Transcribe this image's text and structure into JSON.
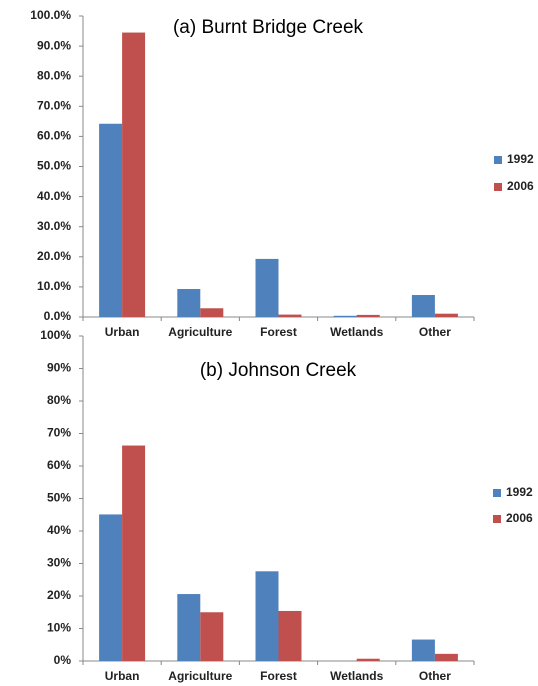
{
  "chart_data": [
    {
      "type": "bar",
      "title": "(a) Burnt Bridge Creek",
      "categories": [
        "Urban",
        "Agriculture",
        "Forest",
        "Wetlands",
        "Other"
      ],
      "series": [
        {
          "name": "1992",
          "color": "#4f81bd",
          "values": [
            64.2,
            9.3,
            19.3,
            0.4,
            7.3
          ]
        },
        {
          "name": "2006",
          "color": "#c0504d",
          "values": [
            94.5,
            2.9,
            0.8,
            0.7,
            1.1
          ]
        }
      ],
      "ylim": [
        0,
        100
      ],
      "yticks": [
        {
          "value": 0,
          "label": "0.0%"
        },
        {
          "value": 10,
          "label": "10.0%"
        },
        {
          "value": 20,
          "label": "20.0%"
        },
        {
          "value": 30,
          "label": "30.0%"
        },
        {
          "value": 40,
          "label": "40.0%"
        },
        {
          "value": 50,
          "label": "50.0%"
        },
        {
          "value": 60,
          "label": "60.0%"
        },
        {
          "value": 70,
          "label": "70.0%"
        },
        {
          "value": 80,
          "label": "80.0%"
        },
        {
          "value": 90,
          "label": "90.0%"
        },
        {
          "value": 100,
          "label": "100.0%"
        }
      ],
      "legend": "right"
    },
    {
      "type": "bar",
      "title": "(b) Johnson Creek",
      "categories": [
        "Urban",
        "Agriculture",
        "Forest",
        "Wetlands",
        "Other"
      ],
      "series": [
        {
          "name": "1992",
          "color": "#4f81bd",
          "values": [
            45.1,
            20.6,
            27.6,
            0.0,
            6.6
          ]
        },
        {
          "name": "2006",
          "color": "#c0504d",
          "values": [
            66.3,
            15.0,
            15.4,
            0.7,
            2.2
          ]
        }
      ],
      "ylim": [
        0,
        100
      ],
      "yticks": [
        {
          "value": 0,
          "label": "0%"
        },
        {
          "value": 10,
          "label": "10%"
        },
        {
          "value": 20,
          "label": "20%"
        },
        {
          "value": 30,
          "label": "30%"
        },
        {
          "value": 40,
          "label": "40%"
        },
        {
          "value": 50,
          "label": "50%"
        },
        {
          "value": 60,
          "label": "60%"
        },
        {
          "value": 70,
          "label": "70%"
        },
        {
          "value": 80,
          "label": "80%"
        },
        {
          "value": 90,
          "label": "90%"
        },
        {
          "value": 100,
          "label": "100%"
        }
      ],
      "legend": "right"
    }
  ]
}
